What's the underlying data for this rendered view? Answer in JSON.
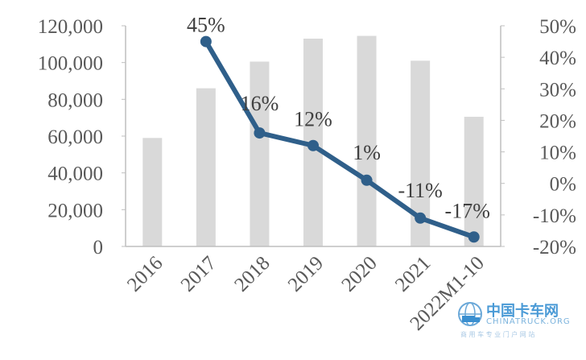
{
  "chart_data": {
    "type": "bar+line",
    "categories": [
      "2016",
      "2017",
      "2018",
      "2019",
      "2020",
      "2021",
      "2022M1-10"
    ],
    "bar_series": {
      "values": [
        59000,
        86000,
        100500,
        113000,
        114500,
        101000,
        70500
      ],
      "axis": "left",
      "color": "#d9d9d9"
    },
    "line_series": {
      "values": [
        45,
        16,
        12,
        1,
        -11,
        -17
      ],
      "categories": [
        "2017",
        "2018",
        "2019",
        "2020",
        "2021",
        "2022M1-10"
      ],
      "labels": [
        "45%",
        "16%",
        "12%",
        "1%",
        "-11%",
        "-17%"
      ],
      "axis": "right",
      "color": "#2f5f8a"
    },
    "left_axis": {
      "min": 0,
      "max": 120000,
      "ticks": [
        0,
        20000,
        40000,
        60000,
        80000,
        100000,
        120000
      ],
      "tick_labels": [
        "0",
        "20,000",
        "40,000",
        "60,000",
        "80,000",
        "100,000",
        "120,000"
      ]
    },
    "right_axis": {
      "min": -20,
      "max": 50,
      "ticks": [
        -20,
        -10,
        0,
        10,
        20,
        30,
        40,
        50
      ],
      "tick_labels": [
        "-20%",
        "-10%",
        "0%",
        "10%",
        "20%",
        "30%",
        "40%",
        "50%"
      ]
    },
    "grid": false,
    "legend": "none"
  },
  "watermark": {
    "line1": "中国卡车网",
    "line2": "CHINATRUCK.ORG",
    "line3": "商 用 车 专 业 门 户 网 站",
    "logo": "truck-globe-logo"
  }
}
